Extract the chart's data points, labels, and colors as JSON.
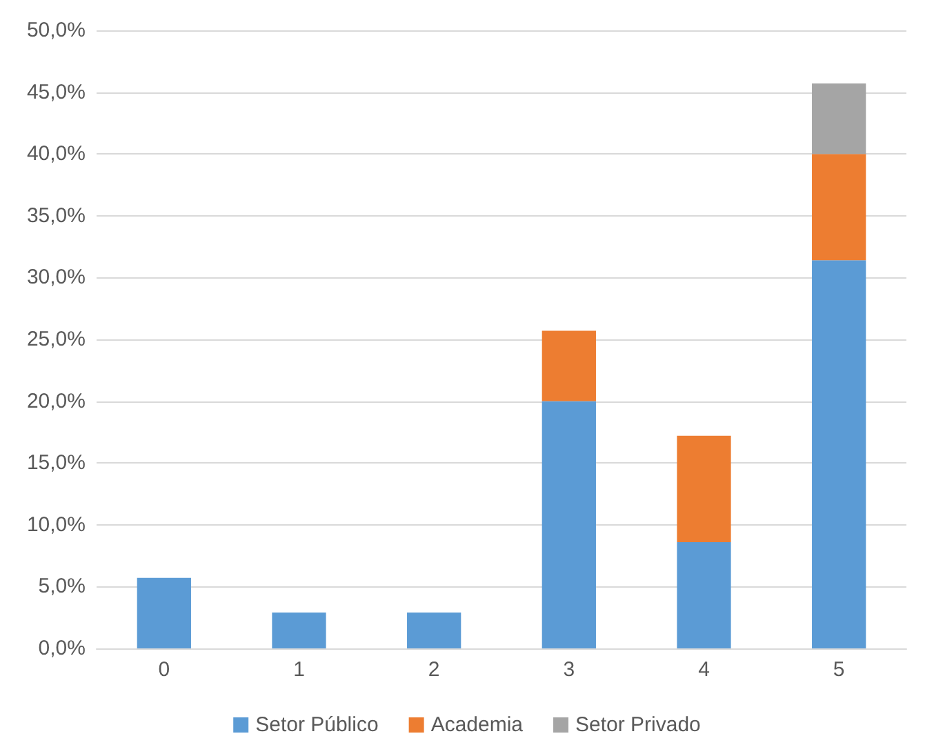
{
  "chart_data": {
    "type": "bar",
    "stacked": true,
    "categories": [
      "0",
      "1",
      "2",
      "3",
      "4",
      "5"
    ],
    "series": [
      {
        "name": "Setor Público",
        "color": "#5b9bd5",
        "values": [
          5.7,
          2.9,
          2.9,
          20.0,
          8.6,
          31.4
        ]
      },
      {
        "name": "Academia",
        "color": "#ed7d31",
        "values": [
          0,
          0,
          0,
          5.7,
          8.6,
          8.6
        ]
      },
      {
        "name": "Setor Privado",
        "color": "#a5a5a5",
        "values": [
          0,
          0,
          0,
          0,
          0,
          5.7
        ]
      }
    ],
    "ylim": [
      0,
      50
    ],
    "yticks": [
      {
        "value": 0,
        "label": "0,0%"
      },
      {
        "value": 5,
        "label": "5,0%"
      },
      {
        "value": 10,
        "label": "10,0%"
      },
      {
        "value": 15,
        "label": "15,0%"
      },
      {
        "value": 20,
        "label": "20,0%"
      },
      {
        "value": 25,
        "label": "25,0%"
      },
      {
        "value": 30,
        "label": "30,0%"
      },
      {
        "value": 35,
        "label": "35,0%"
      },
      {
        "value": 40,
        "label": "40,0%"
      },
      {
        "value": 45,
        "label": "45,0%"
      },
      {
        "value": 50,
        "label": "50,0%"
      }
    ],
    "grid": "y",
    "legend": "bottom"
  }
}
